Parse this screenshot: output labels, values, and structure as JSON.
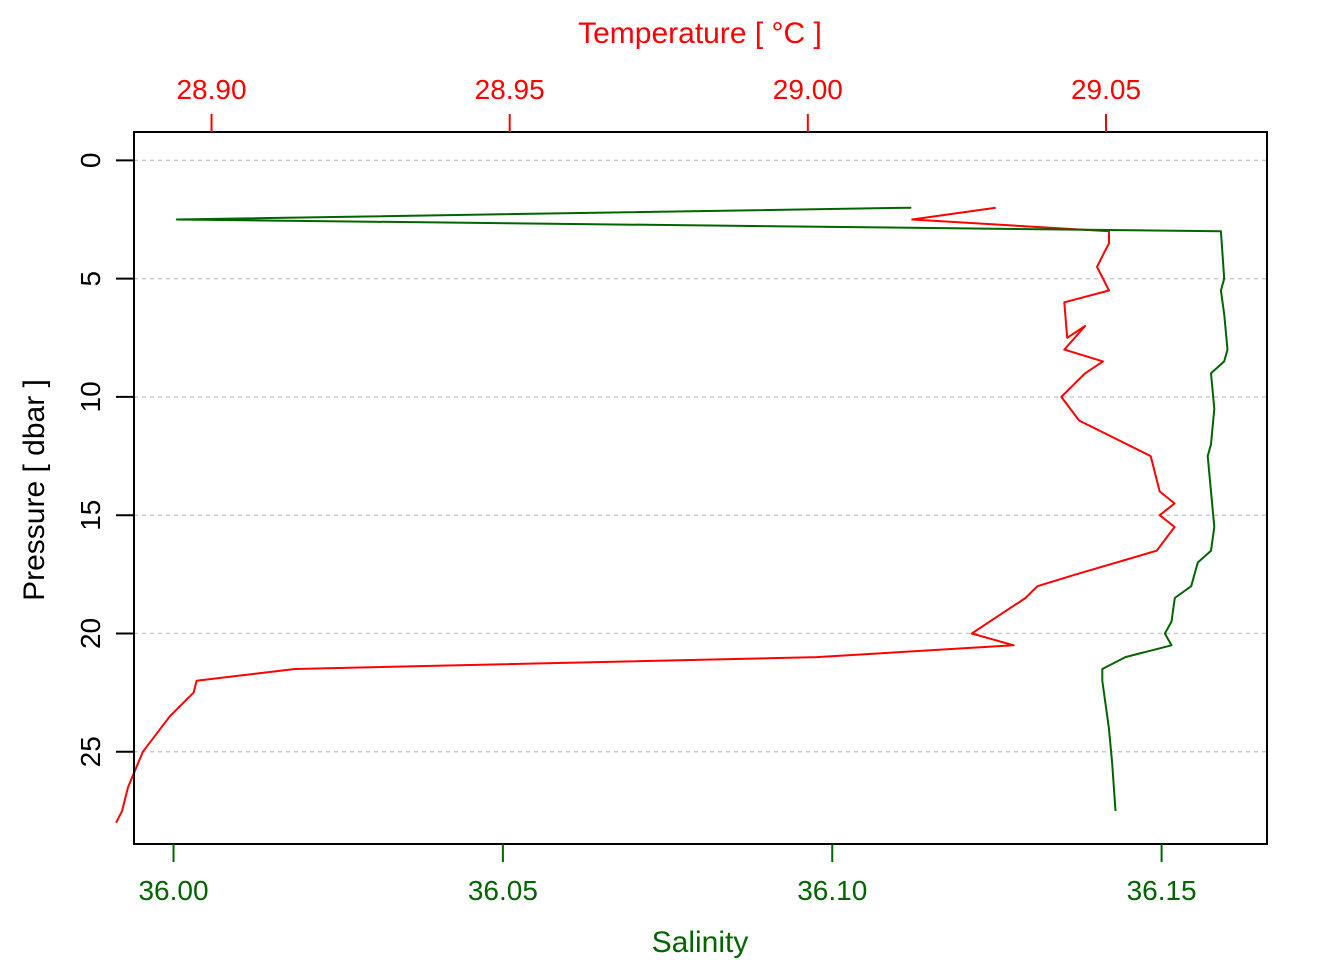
{
  "colors": {
    "temperature": "#ff0000",
    "salinity": "#006400",
    "pressure_axis": "#000000",
    "grid": "#c8c8c8"
  },
  "chart_data": {
    "type": "line",
    "x_axis_top": {
      "label": "Temperature [ °C ]",
      "range": [
        28.887,
        29.077
      ],
      "ticks": [
        28.9,
        28.95,
        29.0,
        29.05
      ],
      "tick_labels": [
        "28.90",
        "28.95",
        "29.00",
        "29.05"
      ]
    },
    "x_axis_bottom": {
      "label": "Salinity",
      "range": [
        35.994,
        36.166
      ],
      "ticks": [
        36.0,
        36.05,
        36.1,
        36.15
      ],
      "tick_labels": [
        "36.00",
        "36.05",
        "36.10",
        "36.15"
      ]
    },
    "y_axis": {
      "label": "Pressure [ dbar ]",
      "range": [
        28.9,
        -1.2
      ],
      "reversed": true,
      "ticks": [
        0,
        5,
        10,
        15,
        20,
        25
      ],
      "tick_labels": [
        "0",
        "5",
        "10",
        "15",
        "20",
        "25"
      ]
    },
    "grid": "horizontal dashed at y ticks",
    "series": [
      {
        "axis": "top",
        "values": [
          {
            "x": 29.0315,
            "p": 2.0
          },
          {
            "x": 29.0175,
            "p": 2.5
          },
          {
            "x": 29.0505,
            "p": 3.0
          },
          {
            "x": 29.0505,
            "p": 3.5
          },
          {
            "x": 29.0485,
            "p": 4.5
          },
          {
            "x": 29.0505,
            "p": 5.5
          },
          {
            "x": 29.043,
            "p": 6.0
          },
          {
            "x": 29.0435,
            "p": 7.5
          },
          {
            "x": 29.0465,
            "p": 7.0
          },
          {
            "x": 29.043,
            "p": 8.0
          },
          {
            "x": 29.0495,
            "p": 8.5
          },
          {
            "x": 29.0465,
            "p": 9.0
          },
          {
            "x": 29.0425,
            "p": 10.0
          },
          {
            "x": 29.0455,
            "p": 11.0
          },
          {
            "x": 29.0495,
            "p": 11.5
          },
          {
            "x": 29.0575,
            "p": 12.5
          },
          {
            "x": 29.059,
            "p": 14.0
          },
          {
            "x": 29.0615,
            "p": 14.5
          },
          {
            "x": 29.059,
            "p": 15.0
          },
          {
            "x": 29.0615,
            "p": 15.5
          },
          {
            "x": 29.0585,
            "p": 16.5
          },
          {
            "x": 29.045,
            "p": 17.5
          },
          {
            "x": 29.0385,
            "p": 18.0
          },
          {
            "x": 29.0365,
            "p": 18.5
          },
          {
            "x": 29.0305,
            "p": 19.5
          },
          {
            "x": 29.0275,
            "p": 20.0
          },
          {
            "x": 29.0345,
            "p": 20.5
          },
          {
            "x": 29.0015,
            "p": 21.0
          },
          {
            "x": 28.914,
            "p": 21.5
          },
          {
            "x": 28.8975,
            "p": 22.0
          },
          {
            "x": 28.897,
            "p": 22.5
          },
          {
            "x": 28.893,
            "p": 23.5
          },
          {
            "x": 28.8885,
            "p": 25.0
          },
          {
            "x": 28.886,
            "p": 26.5
          },
          {
            "x": 28.885,
            "p": 27.5
          },
          {
            "x": 28.884,
            "p": 28.0
          }
        ]
      },
      {
        "axis": "bottom",
        "values": [
          {
            "x": 36.112,
            "p": 2.0
          },
          {
            "x": 36.0005,
            "p": 2.5
          },
          {
            "x": 36.159,
            "p": 3.0
          },
          {
            "x": 36.1595,
            "p": 5.0
          },
          {
            "x": 36.159,
            "p": 5.5
          },
          {
            "x": 36.1595,
            "p": 6.5
          },
          {
            "x": 36.16,
            "p": 8.0
          },
          {
            "x": 36.1595,
            "p": 8.5
          },
          {
            "x": 36.1575,
            "p": 9.0
          },
          {
            "x": 36.158,
            "p": 10.5
          },
          {
            "x": 36.1575,
            "p": 12.0
          },
          {
            "x": 36.157,
            "p": 12.5
          },
          {
            "x": 36.1575,
            "p": 14.0
          },
          {
            "x": 36.158,
            "p": 15.5
          },
          {
            "x": 36.1575,
            "p": 16.5
          },
          {
            "x": 36.1555,
            "p": 17.0
          },
          {
            "x": 36.1545,
            "p": 18.0
          },
          {
            "x": 36.152,
            "p": 18.5
          },
          {
            "x": 36.1515,
            "p": 19.5
          },
          {
            "x": 36.1505,
            "p": 20.0
          },
          {
            "x": 36.1515,
            "p": 20.5
          },
          {
            "x": 36.1445,
            "p": 21.0
          },
          {
            "x": 36.141,
            "p": 21.5
          },
          {
            "x": 36.141,
            "p": 22.0
          },
          {
            "x": 36.142,
            "p": 24.0
          },
          {
            "x": 36.1425,
            "p": 25.5
          },
          {
            "x": 36.143,
            "p": 27.5
          }
        ]
      }
    ]
  }
}
